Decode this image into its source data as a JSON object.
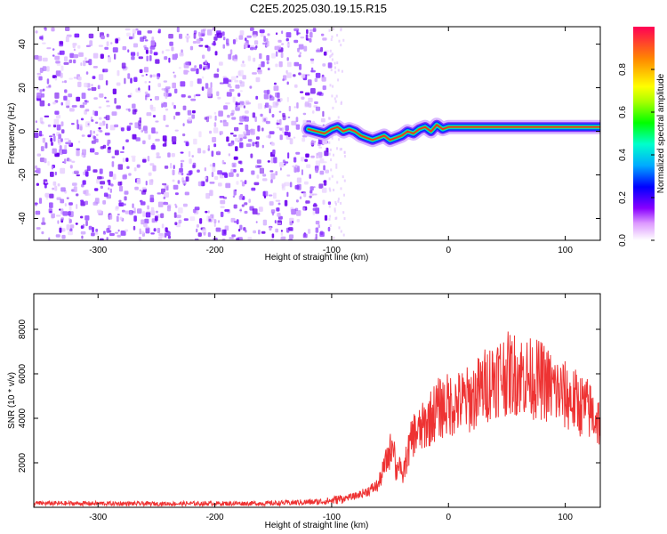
{
  "figure": {
    "title": "C2E5.2025.030.19.15.R15"
  },
  "chart_data": [
    {
      "type": "heatmap",
      "xlabel": "Height of straight line (km)",
      "ylabel": "Frequency (Hz)",
      "xlim": [
        -355,
        130
      ],
      "ylim": [
        -50,
        48
      ],
      "xticks": [
        -300,
        -200,
        -100,
        0,
        100
      ],
      "yticks": [
        -40,
        -20,
        0,
        20,
        40
      ],
      "noise_region_x": [
        -355,
        -103
      ],
      "signal_trace": {
        "x": [
          -120,
          -113,
          -106,
          -100,
          -95,
          -90,
          -85,
          -80,
          -75,
          -70,
          -65,
          -60,
          -55,
          -50,
          -45,
          -40,
          -35,
          -30,
          -25,
          -20,
          -15,
          -10,
          -5,
          0,
          10,
          20,
          40,
          60,
          80,
          100,
          130
        ],
        "y": [
          1,
          0,
          -1,
          1,
          2,
          0,
          1,
          0,
          -2,
          -3,
          -4,
          -3,
          -2,
          -4,
          -3,
          -2,
          0,
          -1,
          1,
          2,
          0,
          3,
          1,
          2,
          2,
          2,
          2,
          2,
          2,
          2,
          2
        ]
      },
      "colorbar": {
        "label": "Normalized spectral amplitude",
        "range": [
          0,
          1
        ],
        "ticks": [
          0.0,
          0.2,
          0.4,
          0.6,
          0.8
        ]
      },
      "grid": false
    },
    {
      "type": "line",
      "xlabel": "Height of straight line (km)",
      "ylabel": "SNR (10 * v/v)",
      "xlim": [
        -355,
        130
      ],
      "ylim": [
        0,
        9600
      ],
      "xticks": [
        -300,
        -200,
        -100,
        0,
        100
      ],
      "yticks": [
        2000,
        4000,
        6000,
        8000
      ],
      "series": [
        {
          "color": "#ee3333",
          "x": [
            -355,
            -300,
            -250,
            -200,
            -150,
            -110,
            -100,
            -90,
            -80,
            -70,
            -60,
            -55,
            -50,
            -47,
            -45,
            -42,
            -40,
            -35,
            -30,
            -25,
            -20,
            -10,
            0,
            10,
            20,
            30,
            40,
            50,
            60,
            70,
            80,
            90,
            100,
            110,
            120,
            130
          ],
          "y": [
            180,
            170,
            160,
            170,
            180,
            250,
            300,
            400,
            500,
            700,
            1000,
            1800,
            2500,
            3200,
            1500,
            2200,
            1200,
            2400,
            3300,
            3400,
            3700,
            4400,
            4600,
            4700,
            4900,
            5400,
            5900,
            6000,
            6000,
            5800,
            5700,
            5300,
            5000,
            4700,
            4400,
            3800
          ]
        }
      ],
      "grid": false
    }
  ]
}
